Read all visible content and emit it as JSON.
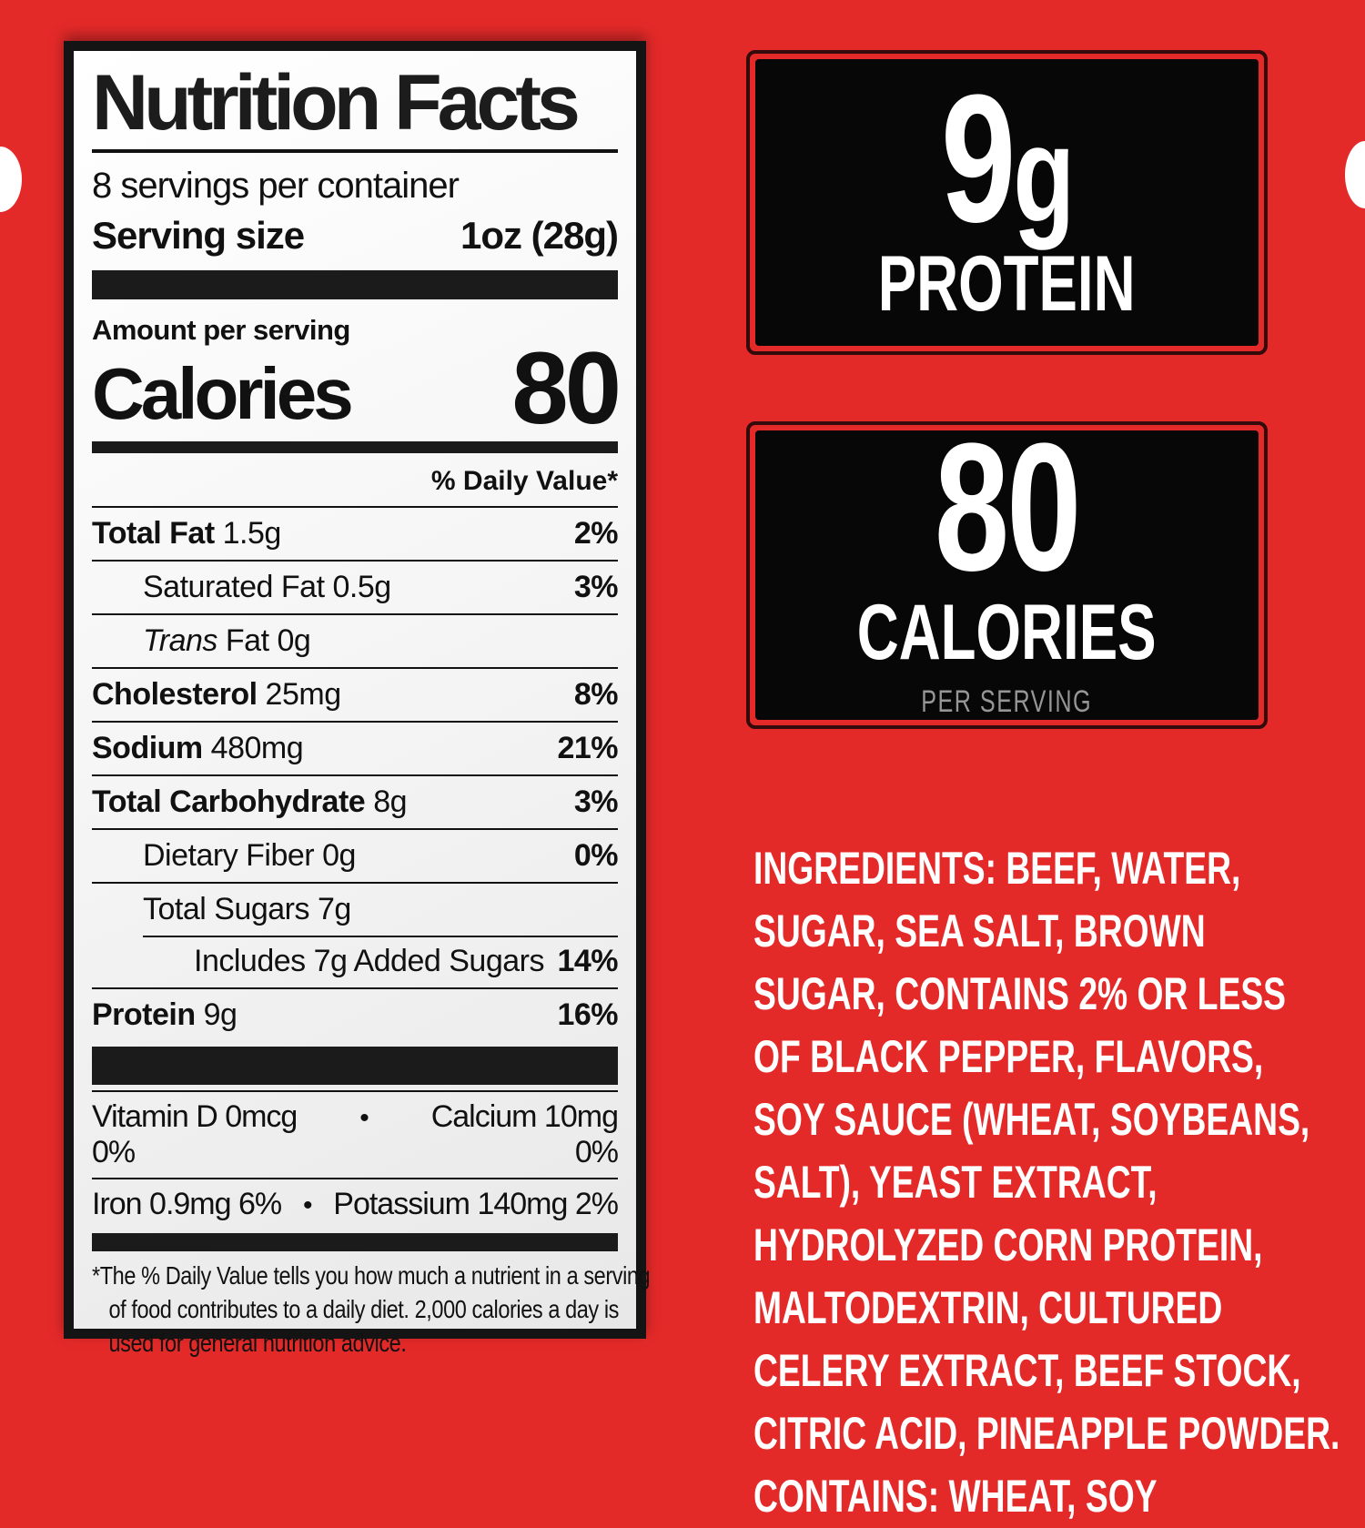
{
  "colors": {
    "background_red": "#e42a29",
    "label_black": "#141414",
    "callout_black": "#070707",
    "callout_outline": "#350a0a",
    "per_serving_gray": "#969696",
    "ingredients_white": "#ffffff"
  },
  "nutrition_label": {
    "title": "Nutrition Facts",
    "servings_per_container": "8 servings per container",
    "serving_size_label": "Serving size",
    "serving_size_value": "1oz (28g)",
    "amount_per_serving": "Amount per serving",
    "calories_label": "Calories",
    "calories_value": "80",
    "daily_value_header": "% Daily Value*",
    "rows": [
      {
        "label": "Total Fat",
        "amount": "1.5g",
        "dv": "2%"
      },
      {
        "label": "Saturated Fat",
        "amount": "0.5g",
        "dv": "3%"
      },
      {
        "label_italic": "Trans",
        "label": "Fat",
        "amount": "0g",
        "dv": ""
      },
      {
        "label": "Cholesterol",
        "amount": "25mg",
        "dv": "8%"
      },
      {
        "label": "Sodium",
        "amount": "480mg",
        "dv": "21%"
      },
      {
        "label": "Total Carbohydrate",
        "amount": "8g",
        "dv": "3%"
      },
      {
        "label": "Dietary Fiber",
        "amount": "0g",
        "dv": "0%"
      },
      {
        "label": "Total Sugars",
        "amount": "7g",
        "dv": ""
      },
      {
        "label": "Includes 7g Added Sugars",
        "amount": "",
        "dv": "14%"
      },
      {
        "label": "Protein",
        "amount": "9g",
        "dv": "16%"
      }
    ],
    "micronutrients": [
      {
        "left": "Vitamin D 0mcg 0%",
        "bullet": "•",
        "right": "Calcium 10mg 0%"
      },
      {
        "left": "Iron 0.9mg 6%",
        "bullet": "•",
        "right": "Potassium 140mg 2%"
      }
    ],
    "footnote": "*The % Daily Value tells you how much a nutrient in a serving of food contributes to a daily diet. 2,000 calories a day is used for general nutrition advice."
  },
  "callouts": {
    "protein": {
      "value": "9",
      "unit": "g",
      "label": "PROTEIN"
    },
    "calories": {
      "value": "80",
      "label": "CALORIES",
      "sublabel": "PER SERVING"
    }
  },
  "ingredients": {
    "prefix": "INGREDIENTS:",
    "body": "BEEF, WATER, SUGAR, SEA SALT, BROWN SUGAR, CONTAINS 2% OR LESS OF BLACK PEPPER, FLAVORS, SOY SAUCE (WHEAT, SOYBEANS, SALT), YEAST EXTRACT, HYDROLYZED CORN PROTEIN, MALTODEXTRIN, CULTURED CELERY EXTRACT, BEEF STOCK, CITRIC ACID, PINEAPPLE POWDER.",
    "contains": "CONTAINS: WHEAT, SOY"
  }
}
